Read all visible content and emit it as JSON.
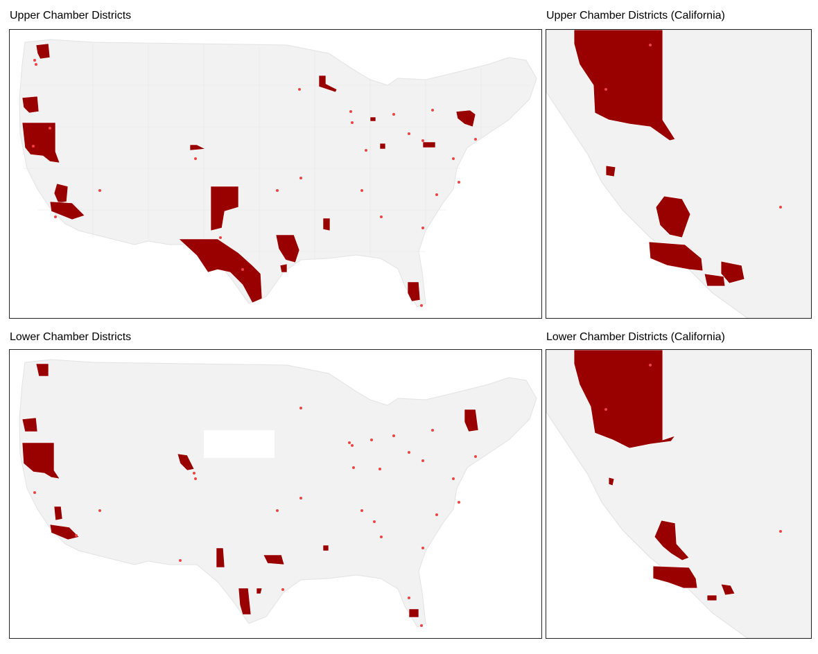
{
  "panels": {
    "upper_us": {
      "title": "Upper Chamber Districts"
    },
    "upper_ca": {
      "title": "Upper Chamber Districts (California)"
    },
    "lower_us": {
      "title": "Lower Chamber Districts"
    },
    "lower_ca": {
      "title": "Lower Chamber Districts (California)"
    }
  },
  "colors": {
    "land": "#f2f2f2",
    "district_border": "#dddddd",
    "highlight_district": "#990000",
    "point": "#ee4444",
    "frame": "#222222"
  }
}
